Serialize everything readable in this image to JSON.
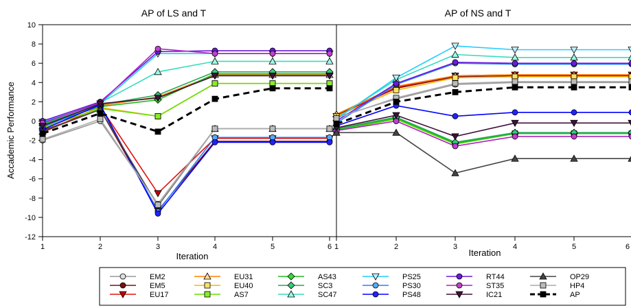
{
  "chart_data": [
    {
      "type": "line",
      "title": "AP of LS and T",
      "xlabel": "Iteration",
      "ylabel": "Accademic Performance",
      "x": [
        1,
        2,
        3,
        4,
        5,
        6
      ],
      "xlim": [
        1,
        6
      ],
      "ylim": [
        -12,
        10
      ],
      "yticks": [
        10,
        8,
        6,
        4,
        2,
        0,
        -2,
        -4,
        -6,
        -8,
        -10,
        -12
      ],
      "series": [
        {
          "name": "EM2",
          "values": [
            -2.0,
            0.0,
            -8.6,
            -0.8,
            -0.8,
            -0.8
          ]
        },
        {
          "name": "EM5",
          "values": [
            -1.0,
            1.2,
            -9.3,
            -2.1,
            -2.1,
            -2.1
          ]
        },
        {
          "name": "EU17",
          "values": [
            -1.2,
            1.5,
            -7.5,
            -1.8,
            -1.8,
            -1.8
          ]
        },
        {
          "name": "EU31",
          "values": [
            -0.5,
            1.6,
            2.5,
            4.8,
            4.8,
            4.8
          ]
        },
        {
          "name": "EU40",
          "values": [
            -0.8,
            1.4,
            0.5,
            3.9,
            3.9,
            3.9
          ]
        },
        {
          "name": "AS7",
          "values": [
            -0.7,
            1.3,
            0.5,
            3.9,
            3.9,
            3.9
          ]
        },
        {
          "name": "AS43",
          "values": [
            -0.4,
            1.5,
            2.2,
            4.9,
            4.9,
            4.9
          ]
        },
        {
          "name": "SC3",
          "values": [
            -0.3,
            1.7,
            2.7,
            5.1,
            5.1,
            5.1
          ]
        },
        {
          "name": "SC47",
          "values": [
            -0.2,
            1.9,
            5.1,
            6.2,
            6.2,
            6.2
          ]
        },
        {
          "name": "PS25",
          "values": [
            -0.1,
            1.8,
            7.0,
            7.0,
            7.0,
            7.0
          ]
        },
        {
          "name": "PS30",
          "values": [
            -0.6,
            1.6,
            -9.4,
            -1.7,
            -1.7,
            -1.7
          ]
        },
        {
          "name": "PS48",
          "values": [
            -0.9,
            1.7,
            -9.6,
            -2.2,
            -2.2,
            -2.2
          ]
        },
        {
          "name": "RT44",
          "values": [
            0.0,
            2.0,
            7.2,
            7.3,
            7.3,
            7.3
          ]
        },
        {
          "name": "ST35",
          "values": [
            -0.2,
            1.9,
            7.5,
            7.0,
            7.0,
            7.0
          ]
        },
        {
          "name": "IC21",
          "values": [
            -0.5,
            1.8,
            2.4,
            4.7,
            4.7,
            4.7
          ]
        },
        {
          "name": "OP29",
          "values": [
            -1.1,
            1.2,
            -8.8,
            -0.8,
            -0.8,
            -0.8
          ]
        },
        {
          "name": "HP4",
          "values": [
            -1.9,
            0.2,
            -8.7,
            -0.8,
            -0.8,
            -0.8
          ]
        },
        {
          "name": "AP",
          "values": [
            -1.3,
            0.8,
            -1.1,
            2.3,
            3.4,
            3.4
          ]
        }
      ]
    },
    {
      "type": "line",
      "title": "AP of NS and T",
      "xlabel": "Iteration",
      "ylabel": "",
      "x": [
        1,
        2,
        3,
        4,
        5,
        6
      ],
      "xlim": [
        1,
        6
      ],
      "ylim": [
        -12,
        10
      ],
      "series": [
        {
          "name": "EM2",
          "values": [
            0.4,
            2.3,
            3.8,
            4.0,
            4.0,
            4.0
          ]
        },
        {
          "name": "EM5",
          "values": [
            0.6,
            3.4,
            4.6,
            4.7,
            4.7,
            4.7
          ]
        },
        {
          "name": "EU17",
          "values": [
            0.5,
            3.5,
            4.7,
            4.8,
            4.8,
            4.8
          ]
        },
        {
          "name": "EU31",
          "values": [
            0.7,
            3.6,
            4.7,
            4.8,
            4.8,
            4.8
          ]
        },
        {
          "name": "EU40",
          "values": [
            0.5,
            3.2,
            4.5,
            4.6,
            4.6,
            4.6
          ]
        },
        {
          "name": "AS7",
          "values": [
            -1.0,
            0.2,
            -2.4,
            -1.3,
            -1.3,
            -1.3
          ]
        },
        {
          "name": "AS43",
          "values": [
            -0.9,
            0.3,
            -2.3,
            -1.3,
            -1.3,
            -1.3
          ]
        },
        {
          "name": "SC3",
          "values": [
            -0.8,
            0.4,
            -2.2,
            -1.2,
            -1.2,
            -1.2
          ]
        },
        {
          "name": "SC47",
          "values": [
            0.3,
            4.3,
            6.9,
            6.6,
            6.6,
            6.6
          ]
        },
        {
          "name": "PS25",
          "values": [
            0.2,
            4.5,
            7.8,
            7.4,
            7.4,
            7.4
          ]
        },
        {
          "name": "PS30",
          "values": [
            -0.2,
            3.8,
            6.0,
            5.9,
            5.9,
            5.9
          ]
        },
        {
          "name": "PS48",
          "values": [
            -0.5,
            1.6,
            0.5,
            0.9,
            0.9,
            0.9
          ]
        },
        {
          "name": "RT44",
          "values": [
            0.0,
            3.9,
            6.1,
            6.0,
            6.0,
            6.0
          ]
        },
        {
          "name": "ST35",
          "values": [
            -1.0,
            0.0,
            -2.6,
            -1.6,
            -1.6,
            -1.6
          ]
        },
        {
          "name": "IC21",
          "values": [
            -0.7,
            0.6,
            -1.6,
            -0.2,
            -0.2,
            -0.2
          ]
        },
        {
          "name": "OP29",
          "values": [
            -1.2,
            -1.2,
            -5.4,
            -3.9,
            -3.9,
            -3.9
          ]
        },
        {
          "name": "HP4",
          "values": [
            0.3,
            2.4,
            3.9,
            4.1,
            4.1,
            4.1
          ]
        },
        {
          "name": "AP",
          "values": [
            -0.3,
            2.0,
            3.0,
            3.5,
            3.5,
            3.5
          ]
        }
      ]
    }
  ],
  "legend": [
    {
      "name": "EM2",
      "color": "#999999",
      "line": "#999999",
      "marker": "circle",
      "fill": "#dddddd",
      "dash": false
    },
    {
      "name": "EM5",
      "color": "#7a1010",
      "line": "#7a1010",
      "marker": "circle",
      "fill": "#7a1010",
      "dash": false
    },
    {
      "name": "EU17",
      "color": "#e01010",
      "line": "#e01010",
      "marker": "tri-down",
      "fill": "#c00000",
      "dash": false
    },
    {
      "name": "EU31",
      "color": "#ff7f00",
      "line": "#ff7f00",
      "marker": "tri-up",
      "fill": "#ffd9a0",
      "dash": false
    },
    {
      "name": "EU40",
      "color": "#ffb000",
      "line": "#ffb000",
      "marker": "square",
      "fill": "#ffe060",
      "dash": false
    },
    {
      "name": "AS7",
      "color": "#80ff00",
      "line": "#66dd00",
      "marker": "square",
      "fill": "#88ee22",
      "dash": false
    },
    {
      "name": "AS43",
      "color": "#00cc00",
      "line": "#22bb22",
      "marker": "diamond",
      "fill": "#33dd33",
      "dash": false
    },
    {
      "name": "SC3",
      "color": "#00b050",
      "line": "#22aa55",
      "marker": "diamond",
      "fill": "#33cc77",
      "dash": false
    },
    {
      "name": "SC47",
      "color": "#33ddbb",
      "line": "#33ddbb",
      "marker": "tri-up",
      "fill": "#99ffe6",
      "dash": false
    },
    {
      "name": "PS25",
      "color": "#00ccff",
      "line": "#22ccff",
      "marker": "tri-down",
      "fill": "#bbeeff",
      "dash": false
    },
    {
      "name": "PS30",
      "color": "#2080ff",
      "line": "#2a7fff",
      "marker": "circle",
      "fill": "#55aaff",
      "dash": false
    },
    {
      "name": "PS48",
      "color": "#0000ff",
      "line": "#0000ff",
      "marker": "circle",
      "fill": "#2222ff",
      "dash": false
    },
    {
      "name": "RT44",
      "color": "#6a1adb",
      "line": "#6a1adb",
      "marker": "circle",
      "fill": "#6a1adb",
      "dash": false
    },
    {
      "name": "ST35",
      "color": "#c000c0",
      "line": "#b020c0",
      "marker": "circle",
      "fill": "#c040d0",
      "dash": false
    },
    {
      "name": "IC21",
      "color": "#40103a",
      "line": "#40103a",
      "marker": "tri-down",
      "fill": "#40103a",
      "dash": false
    },
    {
      "name": "OP29",
      "color": "#444444",
      "line": "#444444",
      "marker": "tri-up",
      "fill": "#444444",
      "dash": false
    },
    {
      "name": "HP4",
      "color": "#aaaaaa",
      "line": "#aaaaaa",
      "marker": "square",
      "fill": "#bbbbbb",
      "dash": false
    },
    {
      "name": "AP",
      "color": "#000000",
      "line": "#000000",
      "marker": "square",
      "fill": "#000000",
      "dash": true
    }
  ]
}
